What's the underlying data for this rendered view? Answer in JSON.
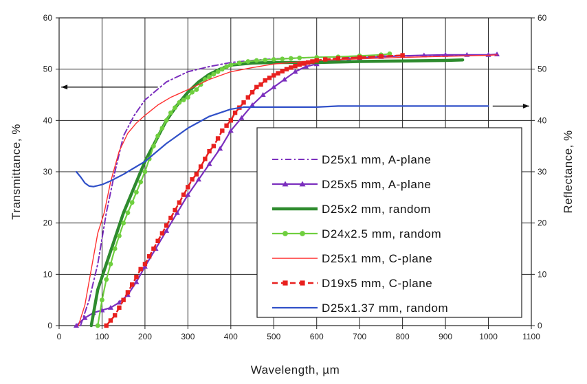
{
  "chart_data": {
    "type": "line",
    "xlabel": "Wavelength, µm",
    "ylabel": "Transmittance, %",
    "y2label": "Reflectance, %",
    "xlim": [
      0,
      1100
    ],
    "ylim": [
      0,
      60
    ],
    "y2lim": [
      0,
      60
    ],
    "xticks": [
      "0",
      "100",
      "200",
      "300",
      "400",
      "500",
      "600",
      "700",
      "800",
      "900",
      "1000",
      "1100"
    ],
    "yticks": [
      "0",
      "10",
      "20",
      "30",
      "40",
      "50",
      "60"
    ],
    "y2ticks": [
      "0",
      "10",
      "20",
      "30",
      "40",
      "50",
      "60"
    ],
    "grid": true,
    "legend_position": "bottom-right",
    "series": [
      {
        "name": "D25x1 mm, A-plane",
        "color": "#7b2fbe",
        "style": "dash-dot",
        "axis": "left",
        "x": [
          50,
          70,
          90,
          110,
          130,
          150,
          175,
          200,
          250,
          300,
          350,
          400,
          450,
          500,
          600,
          700,
          800,
          900,
          1000
        ],
        "y": [
          0,
          5,
          12,
          22,
          30,
          37,
          41,
          44,
          47.5,
          49.5,
          50.5,
          51.3,
          51.7,
          52,
          52.3,
          52.5,
          52.6,
          52.7,
          52.7
        ]
      },
      {
        "name": "D25x5 mm, A-plane",
        "color": "#7b2fbe",
        "style": "solid",
        "marker": "triangle",
        "axis": "left",
        "x": [
          40,
          60,
          80,
          100,
          120,
          140,
          160,
          180,
          200,
          225,
          250,
          275,
          300,
          325,
          350,
          375,
          400,
          425,
          450,
          475,
          500,
          525,
          550,
          575,
          600,
          625,
          650,
          675,
          700,
          750,
          800,
          850,
          900,
          950,
          1000,
          1020
        ],
        "y": [
          0,
          1.5,
          2.5,
          3,
          3.5,
          4.5,
          6,
          8.5,
          11.5,
          15,
          18.5,
          22,
          25.5,
          28.5,
          31.5,
          34.5,
          38,
          40.5,
          43,
          45,
          46.5,
          48,
          49.5,
          50.5,
          51,
          51.5,
          51.8,
          52,
          52.2,
          52.4,
          52.6,
          52.7,
          52.8,
          52.8,
          52.8,
          52.9
        ]
      },
      {
        "name": "D25x2 mm, random",
        "color": "#2e8b2e",
        "style": "solid-thick",
        "axis": "left",
        "x": [
          75,
          90,
          110,
          130,
          150,
          175,
          200,
          225,
          250,
          275,
          300,
          325,
          350,
          375,
          400,
          450,
          500,
          600,
          700,
          800,
          900,
          940
        ],
        "y": [
          0,
          7,
          12,
          17,
          22,
          27,
          32,
          36,
          40,
          43,
          45.5,
          47.5,
          49,
          50,
          50.8,
          51.2,
          51.3,
          51.3,
          51.5,
          51.6,
          51.7,
          51.8
        ]
      },
      {
        "name": "D24x2.5 mm, random",
        "color": "#6fcf3f",
        "style": "solid",
        "marker": "circle",
        "axis": "left",
        "x": [
          90,
          100,
          110,
          120,
          130,
          140,
          150,
          160,
          170,
          180,
          190,
          200,
          210,
          220,
          230,
          240,
          250,
          260,
          270,
          280,
          290,
          300,
          310,
          320,
          330,
          340,
          350,
          360,
          370,
          380,
          390,
          400,
          420,
          440,
          460,
          480,
          500,
          520,
          540,
          560,
          600,
          650,
          700,
          750,
          770
        ],
        "y": [
          0,
          5,
          9,
          12,
          15,
          17.5,
          20,
          22,
          24,
          26,
          28,
          30,
          32.5,
          35,
          37,
          38.5,
          40,
          41.5,
          42.5,
          43.5,
          44,
          44.5,
          45.5,
          46,
          47,
          48,
          48.5,
          49,
          49.5,
          50,
          50.5,
          50.8,
          51.2,
          51.5,
          51.7,
          51.8,
          51.9,
          52,
          52.1,
          52.2,
          52.3,
          52.4,
          52.6,
          52.8,
          53
        ]
      },
      {
        "name": "D25x1 mm, C-plane",
        "color": "#ff3030",
        "style": "solid-thin",
        "axis": "left",
        "x": [
          45,
          60,
          75,
          90,
          105,
          120,
          140,
          160,
          180,
          200,
          230,
          260,
          300,
          350,
          400,
          450,
          500,
          600,
          700,
          800,
          900,
          1000,
          1020
        ],
        "y": [
          0,
          4,
          11,
          18,
          22,
          28,
          34,
          37.5,
          39.5,
          41,
          43,
          44.5,
          46,
          48,
          49.5,
          50.3,
          51,
          51.7,
          52,
          52.3,
          52.5,
          52.7,
          52.8
        ]
      },
      {
        "name": "D19x5 mm, C-plane",
        "color": "#e8201e",
        "style": "dashed",
        "marker": "square",
        "axis": "left",
        "x": [
          110,
          120,
          130,
          140,
          150,
          160,
          170,
          180,
          190,
          200,
          210,
          220,
          230,
          240,
          250,
          260,
          270,
          280,
          290,
          300,
          310,
          320,
          330,
          340,
          350,
          360,
          370,
          380,
          390,
          400,
          410,
          420,
          430,
          440,
          450,
          460,
          470,
          480,
          490,
          500,
          510,
          520,
          530,
          540,
          550,
          560,
          570,
          580,
          590,
          600,
          620,
          650,
          700,
          750,
          800
        ],
        "y": [
          0,
          1,
          2,
          3.5,
          5,
          6.5,
          8,
          9.5,
          11,
          12,
          13.5,
          15,
          16.5,
          18,
          19.5,
          21,
          22.5,
          24,
          25.5,
          27,
          28.5,
          29.5,
          31,
          32.5,
          34,
          35,
          36.5,
          38,
          39,
          40,
          41.5,
          42.5,
          43.5,
          44.5,
          45.5,
          46.5,
          47,
          47.8,
          48.3,
          48.8,
          49.2,
          49.6,
          50,
          50.3,
          50.6,
          50.9,
          51.1,
          51.3,
          51.5,
          51.7,
          51.9,
          52.1,
          52.3,
          52.5,
          52.7
        ]
      },
      {
        "name": "D25x1.37 mm, random",
        "color": "#3050c8",
        "style": "solid",
        "axis": "right",
        "x": [
          40,
          50,
          60,
          70,
          80,
          100,
          120,
          150,
          180,
          200,
          250,
          300,
          350,
          400,
          430,
          450,
          500,
          550,
          600,
          650,
          700,
          800,
          900,
          1000
        ],
        "y": [
          30,
          29,
          27.8,
          27.2,
          27.1,
          27.5,
          28.2,
          29.5,
          31,
          32,
          35.5,
          38.5,
          40.8,
          42.2,
          42.6,
          42.6,
          42.6,
          42.6,
          42.6,
          42.8,
          42.8,
          42.8,
          42.8,
          42.8
        ]
      }
    ],
    "arrows": [
      {
        "direction": "left",
        "from_x": 230,
        "to_x": 5,
        "y": 46.5,
        "axis": "left"
      },
      {
        "direction": "right",
        "from_x": 1010,
        "to_x": 1095,
        "y": 42.8,
        "axis": "left"
      }
    ]
  }
}
